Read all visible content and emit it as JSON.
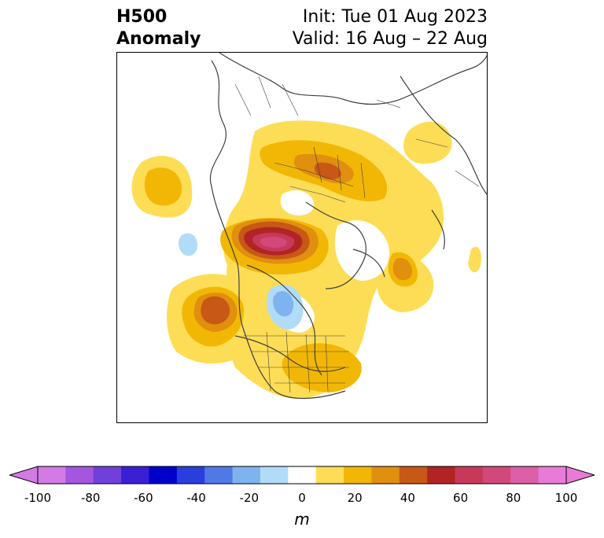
{
  "header": {
    "title_line1": "H500",
    "title_line2": "Anomaly",
    "init": "Init: Tue 01 Aug 2023",
    "valid": "Valid: 16 Aug – 22 Aug"
  },
  "colorbar": {
    "unit": "m",
    "ticks": [
      "-100",
      "-80",
      "-60",
      "-40",
      "-20",
      "0",
      "20",
      "40",
      "60",
      "80",
      "100"
    ],
    "levels": [
      -100,
      -90,
      -80,
      -70,
      -60,
      -50,
      -40,
      -30,
      -20,
      -10,
      10,
      20,
      30,
      40,
      50,
      60,
      70,
      80,
      90,
      100
    ],
    "colors": [
      "#d37ae6",
      "#a456e0",
      "#7040da",
      "#3a1fd4",
      "#0000cc",
      "#2a3edc",
      "#5078e6",
      "#7fb3f0",
      "#b0dcf8",
      "#ffffff",
      "#fddd55",
      "#f2b705",
      "#e08f0e",
      "#c75815",
      "#b22424",
      "#c7395a",
      "#d2487a",
      "#dc5fa8",
      "#e87bd7"
    ],
    "under_color": "#d37ae6",
    "over_color": "#e87bd7"
  },
  "map": {
    "projection": "north-polar-stereographic",
    "field": "500 hPa height anomaly",
    "colors": {
      "light_yellow": "#fddd55",
      "gold": "#f2b705",
      "orange": "#e08f0e",
      "dark_orange": "#c75815",
      "red": "#b22424",
      "pink": "#d2487a",
      "light_blue": "#b0dcf8",
      "mid_blue": "#7fb3f0",
      "coast": "#404040"
    }
  }
}
